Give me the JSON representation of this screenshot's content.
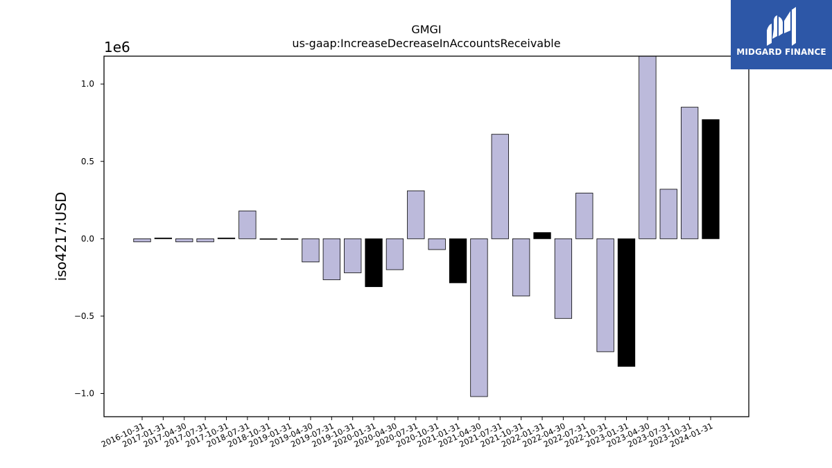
{
  "chart_data": {
    "type": "bar",
    "title": "GMGI",
    "subtitle": "us-gaap:IncreaseDecreaseInAccountsReceivable",
    "ylabel": "iso4217:USD",
    "xlabel": "",
    "y_offset_label": "1e6",
    "ylim": [
      -1.15,
      1.18
    ],
    "yticks": [
      -1.0,
      -0.5,
      0.0,
      0.5,
      1.0
    ],
    "ytick_labels": [
      "−1.0",
      "−0.5",
      "0.0",
      "0.5",
      "1.0"
    ],
    "value_unit_multiplier": 1000000,
    "grid": false,
    "categories": [
      "2016-10-31",
      "2017-01-31",
      "2017-04-30",
      "2017-07-31",
      "2017-10-31",
      "2018-07-31",
      "2018-10-31",
      "2019-01-31",
      "2019-04-30",
      "2019-07-31",
      "2019-10-31",
      "2020-01-31",
      "2020-04-30",
      "2020-07-31",
      "2020-10-31",
      "2021-01-31",
      "2021-04-30",
      "2021-07-31",
      "2021-10-31",
      "2022-01-31",
      "2022-04-30",
      "2022-07-31",
      "2022-10-31",
      "2023-01-31",
      "2023-04-30",
      "2023-07-31",
      "2023-10-31",
      "2024-01-31"
    ],
    "values": [
      -0.02,
      0.005,
      -0.02,
      -0.02,
      0.005,
      0.18,
      0.0,
      0.0,
      -0.15,
      -0.265,
      -0.22,
      -0.31,
      -0.2,
      0.31,
      -0.07,
      -0.285,
      -1.02,
      0.675,
      -0.37,
      0.04,
      -0.515,
      0.295,
      -0.73,
      -0.825,
      1.2,
      0.32,
      0.85,
      0.77
    ],
    "bar_colors": [
      "#bcbadb",
      "#000000",
      "#bcbadb",
      "#bcbadb",
      "#000000",
      "#bcbadb",
      "#000000",
      "#000000",
      "#bcbadb",
      "#bcbadb",
      "#bcbadb",
      "#000000",
      "#bcbadb",
      "#bcbadb",
      "#bcbadb",
      "#000000",
      "#bcbadb",
      "#bcbadb",
      "#bcbadb",
      "#000000",
      "#bcbadb",
      "#bcbadb",
      "#bcbadb",
      "#000000",
      "#bcbadb",
      "#bcbadb",
      "#bcbadb",
      "#000000"
    ]
  },
  "logo": {
    "text": "MIDGARD FINANCE",
    "color": "#2d57a7"
  }
}
